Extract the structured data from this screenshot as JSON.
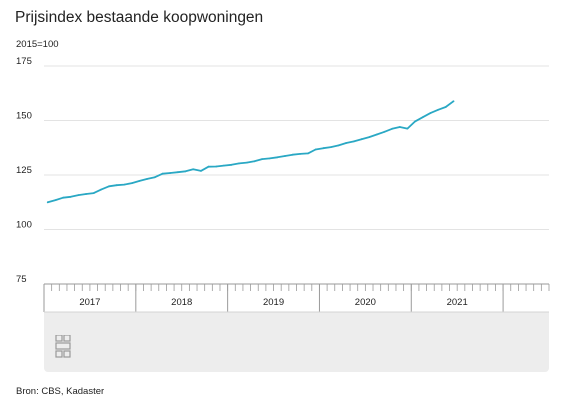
{
  "title": "Prijsindex bestaande koopwoningen",
  "unit_label": "2015=100",
  "source": "Bron: CBS, Kadaster",
  "logo_name": "cbs-logo-icon",
  "colors": {
    "line": "#2aa8c4",
    "grid": "#e3e3e3",
    "panel": "#ededed",
    "axis": "#9a9a9a"
  },
  "chart_data": {
    "type": "line",
    "title": "Prijsindex bestaande koopwoningen",
    "ylabel": "2015=100",
    "xlabel": "",
    "ylim": [
      75,
      175
    ],
    "yticks": [
      75,
      100,
      125,
      150,
      175
    ],
    "grid": true,
    "legend": "none",
    "year_labels": [
      "2017",
      "2018",
      "2019",
      "2020",
      "2021"
    ],
    "series": [
      {
        "x": [
          "2017-01",
          "2017-02",
          "2017-03",
          "2017-04",
          "2017-05",
          "2017-06",
          "2017-07",
          "2017-08",
          "2017-09",
          "2017-10",
          "2017-11",
          "2017-12",
          "2018-01",
          "2018-02",
          "2018-03",
          "2018-04",
          "2018-05",
          "2018-06",
          "2018-07",
          "2018-08",
          "2018-09",
          "2018-10",
          "2018-11",
          "2018-12",
          "2019-01",
          "2019-02",
          "2019-03",
          "2019-04",
          "2019-05",
          "2019-06",
          "2019-07",
          "2019-08",
          "2019-09",
          "2019-10",
          "2019-11",
          "2019-12",
          "2020-01",
          "2020-02",
          "2020-03",
          "2020-04",
          "2020-05",
          "2020-06",
          "2020-07",
          "2020-08",
          "2020-09",
          "2020-10",
          "2020-11",
          "2020-12",
          "2021-01",
          "2021-02",
          "2021-03",
          "2021-04",
          "2021-05",
          "2021-06"
        ],
        "values": [
          112.5,
          113.5,
          114.6,
          115.0,
          115.8,
          116.3,
          116.7,
          118.4,
          119.8,
          120.3,
          120.6,
          121.3,
          122.3,
          123.2,
          124.0,
          125.6,
          125.9,
          126.3,
          126.7,
          127.6,
          126.9,
          128.8,
          128.9,
          129.3,
          129.7,
          130.3,
          130.7,
          131.3,
          132.3,
          132.6,
          133.1,
          133.7,
          134.3,
          134.7,
          134.9,
          136.7,
          137.3,
          137.8,
          138.6,
          139.7,
          140.4,
          141.4,
          142.4,
          143.6,
          144.8,
          146.2,
          147.0,
          146.3,
          149.6,
          151.5,
          153.4,
          154.9,
          156.2,
          158.8
        ]
      }
    ]
  }
}
